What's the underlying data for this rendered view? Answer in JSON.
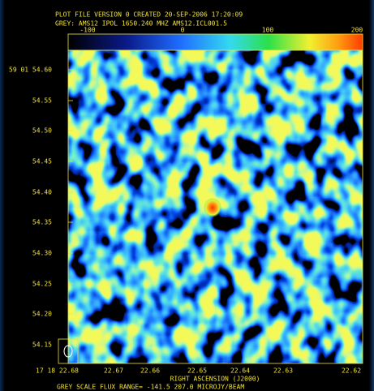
{
  "header": {
    "line1": "PLOT FILE VERSION 0  CREATED 20-SEP-2006 17:20:09",
    "line2": "GREY: AMS12  IPOL  1650.240 MHZ  AMS12.ICL001.5"
  },
  "colorbar": {
    "labels": [
      "-100",
      "0",
      "100",
      "200"
    ]
  },
  "y_axis": {
    "labels": [
      "59 01 54.60",
      "54.55",
      "54.50",
      "54.45",
      "54.40",
      "54.35",
      "54.30",
      "54.25",
      "54.20",
      "54.15"
    ]
  },
  "x_axis": {
    "labels": [
      "17 18 22.68",
      "22.67",
      "22.66",
      "22.65",
      "22.64",
      "22.63",
      "22.62"
    ],
    "title": "RIGHT ASCENSION (J2000)"
  },
  "footer": "GREY SCALE FLUX RANGE= -141.5 207.0 MICROJY/BEAM"
}
